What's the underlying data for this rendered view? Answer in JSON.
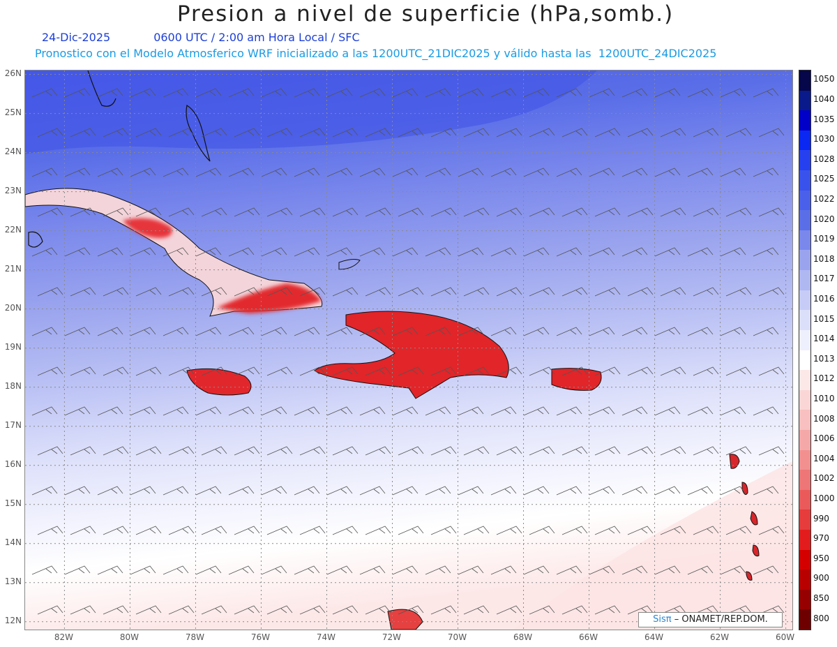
{
  "title": "Presion a nivel de superficie (hPa,somb.)",
  "date": "24-Dic-2025",
  "time_text": "0600 UTC / 2:00 am Hora Local / SFC",
  "model_text": "Pronostico con el Modelo Atmosferico WRF inicializado a las 1200UTC_21DIC2025 y válido hasta las  1200UTC_24DIC2025",
  "lat_labels": [
    "26N",
    "25N",
    "24N",
    "23N",
    "22N",
    "21N",
    "20N",
    "19N",
    "18N",
    "17N",
    "16N",
    "15N",
    "14N",
    "13N",
    "12N"
  ],
  "lon_labels": [
    "82W",
    "80W",
    "78W",
    "76W",
    "74W",
    "72W",
    "70W",
    "68W",
    "66W",
    "64W",
    "62W",
    "60W"
  ],
  "colorbar": {
    "levels": [
      "1050",
      "1040",
      "1035",
      "1030",
      "1028",
      "1025",
      "1022",
      "1020",
      "1019",
      "1018",
      "1017",
      "1016",
      "1015",
      "1014",
      "1013",
      "1012",
      "1010",
      "1008",
      "1006",
      "1004",
      "1002",
      "1000",
      "990",
      "970",
      "950",
      "900",
      "850",
      "800"
    ],
    "colors": [
      "#06064a",
      "#0a1a8a",
      "#0000c8",
      "#0a28f2",
      "#2640f0",
      "#3a52ec",
      "#4a60ea",
      "#5a6ee8",
      "#7a88ec",
      "#9aa4ee",
      "#b0b8f2",
      "#c6ccf6",
      "#dcdffa",
      "#eff0fd",
      "#ffffff",
      "#fde8e8",
      "#fbd6d6",
      "#f8c0c0",
      "#f5a8a8",
      "#f29090",
      "#ee7676",
      "#ea5a5a",
      "#e63c3c",
      "#e21c1c",
      "#d40000",
      "#b80000",
      "#960000",
      "#6e0000"
    ]
  },
  "credit": {
    "brand": "Sisπ",
    "org": "– ONAMET/REP.DOM."
  },
  "map_extent": {
    "lon_min": -83.2,
    "lon_max": -59.8,
    "lat_min": 11.8,
    "lat_max": 26.1
  }
}
